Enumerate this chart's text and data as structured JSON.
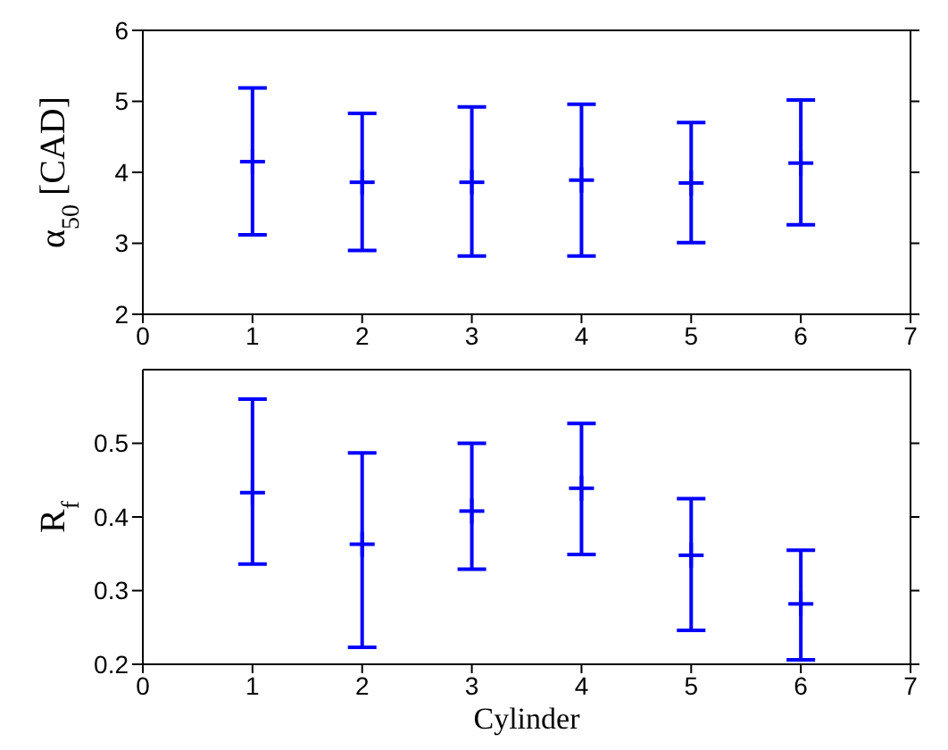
{
  "chart_data": [
    {
      "type": "scatter",
      "ylabel": "α$_{50}$ [CAD]",
      "x": [
        1,
        2,
        3,
        4,
        5,
        6
      ],
      "values": [
        4.15,
        3.86,
        3.86,
        3.89,
        3.85,
        4.13
      ],
      "errors": [
        [
          3.12,
          5.19
        ],
        [
          2.9,
          4.83
        ],
        [
          2.82,
          4.92
        ],
        [
          2.82,
          4.96
        ],
        [
          3.01,
          4.7
        ],
        [
          3.26,
          5.02
        ]
      ],
      "color": "#0000ff",
      "marker": "cross",
      "xlim": [
        0,
        7
      ],
      "xticks": [
        0,
        1,
        2,
        3,
        4,
        5,
        6,
        7
      ],
      "ylim": [
        2,
        6
      ],
      "yticks": [
        2,
        3,
        4,
        5,
        6
      ],
      "grid": false,
      "legend": false
    },
    {
      "type": "scatter",
      "xlabel": "Cylinder",
      "ylabel": "R$_{f}$",
      "x": [
        1,
        2,
        3,
        4,
        5,
        6
      ],
      "values": [
        0.433,
        0.363,
        0.408,
        0.439,
        0.348,
        0.282
      ],
      "errors": [
        [
          0.336,
          0.56
        ],
        [
          0.223,
          0.487
        ],
        [
          0.329,
          0.5
        ],
        [
          0.349,
          0.527
        ],
        [
          0.246,
          0.425
        ],
        [
          0.206,
          0.355
        ]
      ],
      "color": "#0000ff",
      "marker": "cross",
      "xlim": [
        0,
        7
      ],
      "xticks": [
        0,
        1,
        2,
        3,
        4,
        5,
        6,
        7
      ],
      "ylim": [
        0.2,
        0.6
      ],
      "yticks": [
        0.2,
        0.3,
        0.4,
        0.5
      ],
      "grid": false,
      "legend": false
    }
  ]
}
